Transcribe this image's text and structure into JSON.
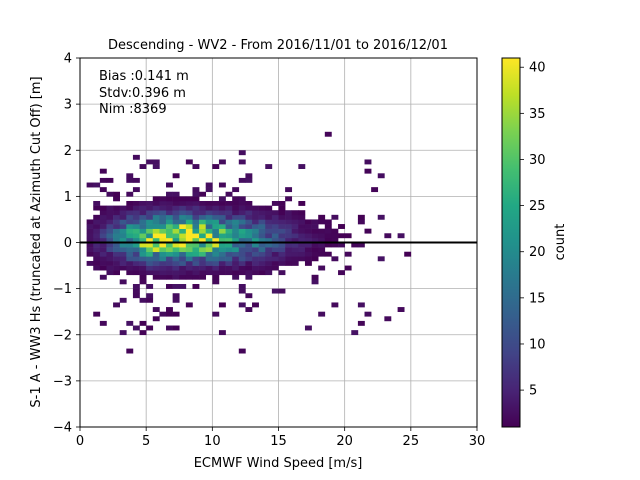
{
  "chart_data": {
    "type": "heatmap",
    "title": "Descending - WV2 - From 2016/11/01 to 2016/12/01",
    "xlabel": "ECMWF Wind Speed [m/s]",
    "ylabel": "S-1 A - WW3 Hs (truncated at Azimuth Cut Off) [m]",
    "xlim": [
      0,
      30
    ],
    "ylim": [
      -4,
      4
    ],
    "xticks": [
      "0",
      "5",
      "10",
      "15",
      "20",
      "25",
      "30"
    ],
    "yticks": [
      "4",
      "3",
      "2",
      "1",
      "0",
      "−1",
      "−2",
      "−3",
      "−4"
    ],
    "grid": true,
    "reference_line_y": 0,
    "stats": {
      "bias": "Bias :0.141 m",
      "stdv": "Stdv:0.396 m",
      "nim": "Nim :8369"
    },
    "colorbar": {
      "label": "count",
      "min": 1,
      "max": 41,
      "ticks": [
        "5",
        "10",
        "15",
        "20",
        "25",
        "30",
        "35",
        "40"
      ],
      "colormap": "viridis"
    },
    "density_model": {
      "peak_count": 41,
      "center_x": 6.8,
      "center_y": 0.1,
      "sigma_x": 3.8,
      "sigma_y": 0.32,
      "x_range": [
        0.5,
        25
      ],
      "y_range": [
        -2.8,
        2.4
      ]
    }
  }
}
